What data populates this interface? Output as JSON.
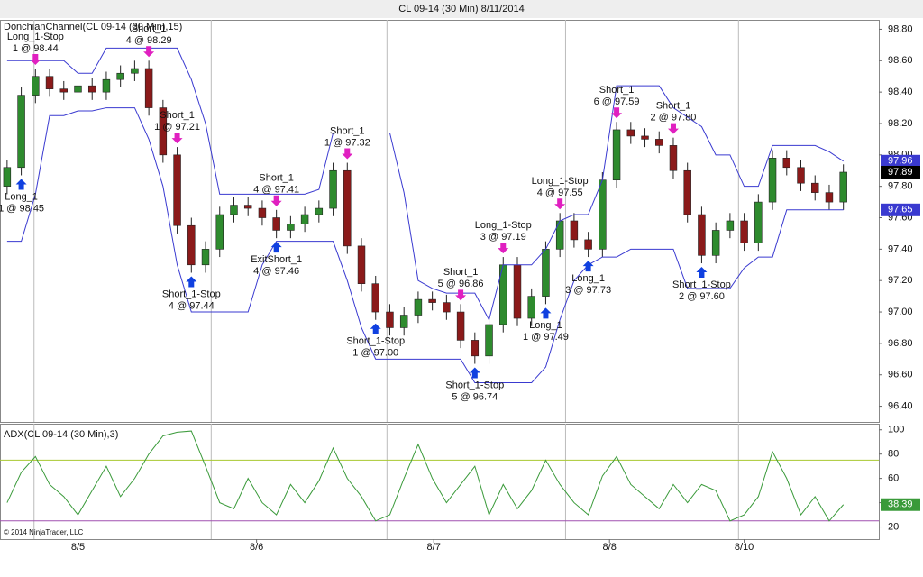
{
  "title": "CL 09-14 (30 Min)  8/11/2014",
  "copyright": "© 2014 NinjaTrader, LLC",
  "chart_data": [
    {
      "type": "candlestick",
      "title": "DonchianChannel(CL 09-14 (30 Min),15)",
      "up_color": "#2e8b2e",
      "down_color": "#8b1a1a",
      "channel_color": "#3a3ad0",
      "open": [
        97.8,
        97.92,
        98.38,
        98.5,
        98.42,
        98.4,
        98.44,
        98.4,
        98.48,
        98.52,
        98.55,
        98.3,
        98.0,
        97.55,
        97.3,
        97.4,
        97.62,
        97.68,
        97.66,
        97.6,
        97.52,
        97.56,
        97.62,
        97.66,
        97.9,
        97.42,
        97.18,
        97.0,
        96.9,
        96.98,
        97.08,
        97.06,
        97.0,
        96.82,
        96.72,
        96.92,
        97.3,
        96.96,
        97.1,
        97.4,
        97.58,
        97.46,
        97.4,
        97.84,
        98.16,
        98.12,
        98.1,
        98.06,
        97.9,
        97.62,
        97.36,
        97.52,
        97.58,
        97.44,
        97.7,
        97.98,
        97.92,
        97.82,
        97.76,
        97.7
      ],
      "high": [
        97.97,
        98.43,
        98.55,
        98.55,
        98.47,
        98.49,
        98.49,
        98.53,
        98.57,
        98.6,
        98.6,
        98.35,
        98.05,
        97.6,
        97.45,
        97.67,
        97.73,
        97.73,
        97.71,
        97.65,
        97.61,
        97.67,
        97.71,
        97.95,
        97.95,
        97.47,
        97.23,
        97.05,
        97.03,
        97.13,
        97.13,
        97.11,
        97.05,
        96.87,
        96.97,
        97.35,
        97.35,
        97.15,
        97.45,
        97.63,
        97.63,
        97.51,
        97.89,
        98.21,
        98.21,
        98.17,
        98.15,
        98.11,
        97.95,
        97.67,
        97.57,
        97.63,
        97.63,
        97.75,
        98.03,
        98.03,
        97.97,
        97.87,
        97.81,
        97.94
      ],
      "low": [
        97.75,
        97.87,
        98.33,
        98.37,
        98.35,
        98.35,
        98.35,
        98.35,
        98.43,
        98.47,
        98.25,
        97.95,
        97.5,
        97.25,
        97.25,
        97.35,
        97.57,
        97.61,
        97.55,
        97.47,
        97.47,
        97.51,
        97.57,
        97.61,
        97.37,
        97.13,
        96.95,
        96.85,
        96.85,
        96.93,
        97.01,
        96.95,
        96.77,
        96.67,
        96.67,
        96.87,
        96.91,
        96.91,
        97.05,
        97.35,
        97.41,
        97.35,
        97.35,
        97.79,
        98.07,
        98.05,
        98.01,
        97.85,
        97.57,
        97.31,
        97.31,
        97.47,
        97.39,
        97.39,
        97.65,
        97.87,
        97.77,
        97.71,
        97.65,
        97.65
      ],
      "close": [
        97.92,
        98.38,
        98.5,
        98.42,
        98.4,
        98.44,
        98.4,
        98.48,
        98.52,
        98.55,
        98.3,
        98.0,
        97.55,
        97.3,
        97.4,
        97.62,
        97.68,
        97.66,
        97.6,
        97.52,
        97.56,
        97.62,
        97.66,
        97.9,
        97.42,
        97.18,
        97.0,
        96.9,
        96.98,
        97.08,
        97.06,
        97.0,
        96.82,
        96.72,
        96.92,
        97.3,
        96.96,
        97.1,
        97.4,
        97.58,
        97.46,
        97.4,
        97.84,
        98.16,
        98.12,
        98.1,
        98.06,
        97.9,
        97.62,
        97.36,
        97.52,
        97.58,
        97.44,
        97.7,
        97.98,
        97.92,
        97.82,
        97.76,
        97.7,
        97.89
      ],
      "channel_upper": [
        98.6,
        98.6,
        98.6,
        98.6,
        98.6,
        98.52,
        98.52,
        98.68,
        98.68,
        98.68,
        98.68,
        98.68,
        98.68,
        98.48,
        98.2,
        97.75,
        97.75,
        97.75,
        97.75,
        97.75,
        97.75,
        97.75,
        97.78,
        98.14,
        98.14,
        98.14,
        98.14,
        98.14,
        97.76,
        97.2,
        97.15,
        97.12,
        97.12,
        97.12,
        96.95,
        97.3,
        97.3,
        97.3,
        97.4,
        97.58,
        97.62,
        97.62,
        97.84,
        98.44,
        98.44,
        98.44,
        98.44,
        98.3,
        98.24,
        98.18,
        98.0,
        98.0,
        97.8,
        97.8,
        98.06,
        98.06,
        98.06,
        98.06,
        98.02,
        97.96
      ],
      "channel_lower": [
        97.45,
        97.45,
        97.75,
        98.25,
        98.25,
        98.28,
        98.28,
        98.3,
        98.3,
        98.3,
        98.1,
        97.8,
        97.3,
        97.0,
        97.0,
        97.0,
        97.0,
        97.0,
        97.3,
        97.45,
        97.45,
        97.45,
        97.45,
        97.45,
        97.2,
        96.9,
        96.7,
        96.7,
        96.7,
        96.7,
        96.7,
        96.7,
        96.7,
        96.55,
        96.55,
        96.55,
        96.55,
        96.55,
        96.65,
        96.95,
        97.2,
        97.3,
        97.35,
        97.35,
        97.4,
        97.4,
        97.4,
        97.4,
        97.15,
        97.15,
        97.15,
        97.15,
        97.28,
        97.35,
        97.35,
        97.65,
        97.65,
        97.65,
        97.65,
        97.65
      ],
      "xlim": [
        -0.5,
        61.5
      ],
      "xticks": [
        {
          "value": 5,
          "label": "8/5"
        },
        {
          "value": 17.6,
          "label": "8/6"
        },
        {
          "value": 30.1,
          "label": "8/7"
        },
        {
          "value": 42.5,
          "label": "8/8"
        },
        {
          "value": 52,
          "label": "8/10"
        }
      ],
      "session_lines": [
        1.9,
        14.4,
        26.8,
        39.4,
        51.6
      ],
      "ylim": [
        96.3,
        98.86
      ],
      "yticks": [
        {
          "value": 96.4,
          "label": "96.40"
        },
        {
          "value": 96.6,
          "label": "96.60"
        },
        {
          "value": 96.8,
          "label": "96.80"
        },
        {
          "value": 97,
          "label": "97.00"
        },
        {
          "value": 97.2,
          "label": "97.20"
        },
        {
          "value": 97.4,
          "label": "97.40"
        },
        {
          "value": 97.6,
          "label": "97.60"
        },
        {
          "value": 97.8,
          "label": "97.80"
        },
        {
          "value": 98,
          "label": "98.00"
        },
        {
          "value": 98.2,
          "label": "98.20"
        },
        {
          "value": 98.4,
          "label": "98.40"
        },
        {
          "value": 98.6,
          "label": "98.60"
        },
        {
          "value": 98.8,
          "label": "98.80"
        }
      ],
      "annotations": [
        {
          "bar": 2,
          "side": "above",
          "lines": [
            "Long_1-Stop",
            "1 @ 98.44"
          ]
        },
        {
          "bar": 1,
          "side": "below",
          "lines": [
            "Long_1",
            "1 @ 98.45"
          ]
        },
        {
          "bar": 10,
          "side": "above",
          "lines": [
            "Short_1",
            "4 @ 98.29"
          ]
        },
        {
          "bar": 12,
          "side": "above",
          "lines": [
            "Short_1",
            "1 @ 97.21"
          ]
        },
        {
          "bar": 13,
          "side": "below",
          "lines": [
            "Short_1-Stop",
            "4 @ 97.44"
          ]
        },
        {
          "bar": 19,
          "side": "above",
          "lines": [
            "Short_1",
            "4 @ 97.41"
          ]
        },
        {
          "bar": 19,
          "side": "below",
          "lines": [
            "ExitShort_1",
            "4 @ 97.46"
          ]
        },
        {
          "bar": 24,
          "side": "above",
          "lines": [
            "Short_1",
            "1 @ 97.32"
          ]
        },
        {
          "bar": 26,
          "side": "below",
          "lines": [
            "Short_1-Stop",
            "1 @ 97.00"
          ]
        },
        {
          "bar": 32,
          "side": "above",
          "lines": [
            "Short_1",
            "5 @ 96.86"
          ]
        },
        {
          "bar": 33,
          "side": "below",
          "lines": [
            "Short_1-Stop",
            "5 @ 96.74"
          ]
        },
        {
          "bar": 35,
          "side": "above",
          "lines": [
            "Long_1-Stop",
            "3 @ 97.19"
          ]
        },
        {
          "bar": 38,
          "side": "below",
          "lines": [
            "Long_1",
            "1 @ 97.49"
          ]
        },
        {
          "bar": 39,
          "side": "above",
          "lines": [
            "Long_1-Stop",
            "4 @ 97.55"
          ]
        },
        {
          "bar": 41,
          "side": "below",
          "lines": [
            "Long_1",
            "3 @ 97.73"
          ]
        },
        {
          "bar": 43,
          "side": "above",
          "lines": [
            "Short_1",
            "6 @ 97.59"
          ]
        },
        {
          "bar": 47,
          "side": "above",
          "lines": [
            "Short_1",
            "2 @ 97.80"
          ]
        },
        {
          "bar": 49,
          "side": "below",
          "lines": [
            "Short_1-Stop",
            "2 @ 97.60"
          ]
        }
      ]
    },
    {
      "type": "line",
      "title": "ADX(CL 09-14 (30 Min),3)",
      "color": "#3a9a3a",
      "values": [
        40,
        65,
        78,
        55,
        45,
        30,
        50,
        70,
        45,
        60,
        80,
        95,
        98,
        99,
        70,
        40,
        35,
        60,
        40,
        30,
        55,
        40,
        58,
        85,
        60,
        45,
        25,
        30,
        60,
        88,
        60,
        40,
        55,
        70,
        30,
        55,
        35,
        50,
        75,
        55,
        40,
        30,
        62,
        78,
        55,
        45,
        35,
        55,
        40,
        55,
        50,
        25,
        30,
        45,
        82,
        60,
        30,
        45,
        25,
        38.39
      ],
      "levels": [
        {
          "value": 75,
          "color": "#a8c830"
        },
        {
          "value": 25,
          "color": "#a050b0"
        }
      ],
      "ylim": [
        10,
        105
      ],
      "yticks": [
        20,
        40,
        60,
        80,
        100
      ]
    }
  ]
}
